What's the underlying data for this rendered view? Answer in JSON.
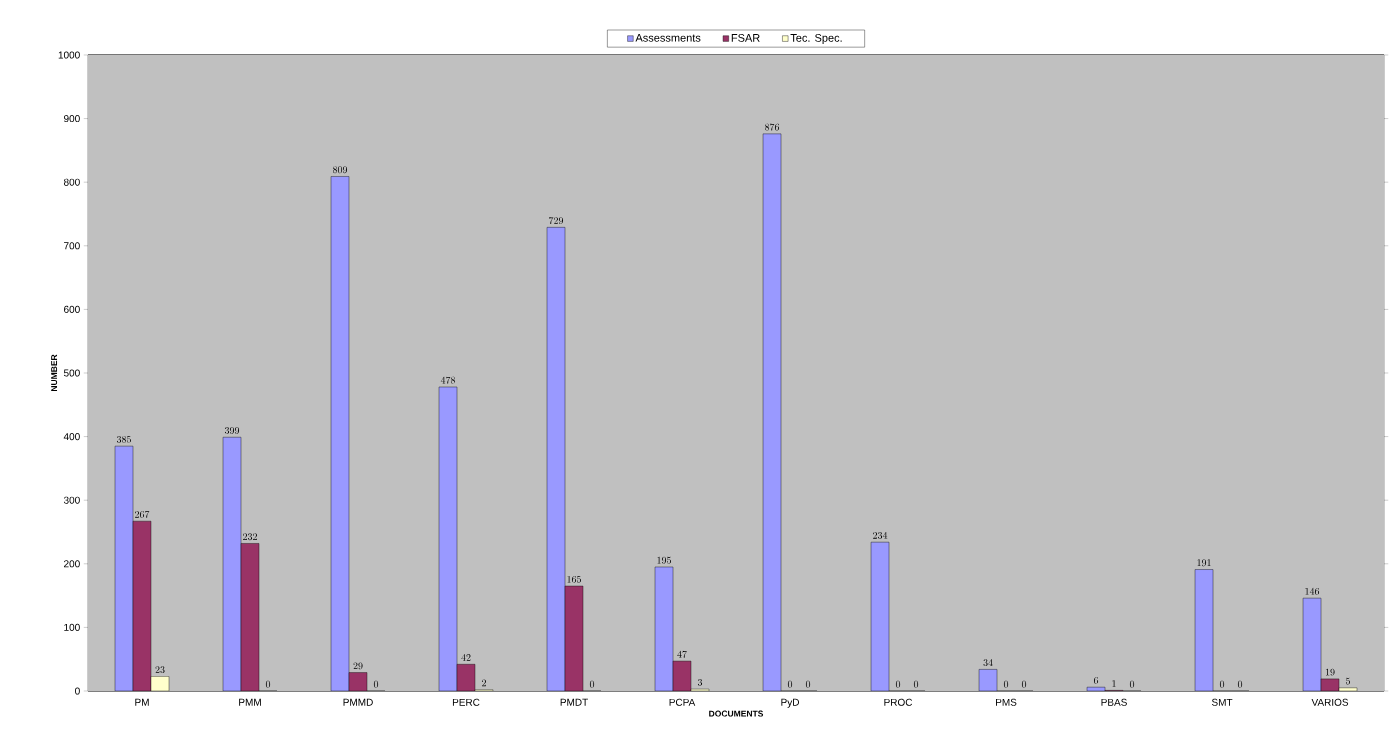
{
  "chart_data": {
    "type": "bar",
    "xlabel": "DOCUMENTS",
    "ylabel": "NUMBER",
    "categories": [
      "PM",
      "PMM",
      "PMMD",
      "PERC",
      "PMDT",
      "PCPA",
      "PyD",
      "PROC",
      "PMS",
      "PBAS",
      "SMT",
      "VARIOS"
    ],
    "series": [
      {
        "name": "Assessments",
        "color": "#9999ff",
        "values": [
          385,
          399,
          809,
          478,
          729,
          195,
          876,
          234,
          34,
          6,
          191,
          146
        ]
      },
      {
        "name": "FSAR",
        "color": "#993366",
        "values": [
          267,
          232,
          29,
          42,
          165,
          47,
          0,
          0,
          0,
          1,
          0,
          19
        ]
      },
      {
        "name": "Tec. Spec.",
        "color": "#ffffcc",
        "values": [
          23,
          0,
          0,
          2,
          0,
          3,
          0,
          0,
          0,
          0,
          0,
          5
        ]
      }
    ],
    "ylim": [
      0,
      1000
    ],
    "yticks": [
      0,
      100,
      200,
      300,
      400,
      500,
      600,
      700,
      800,
      900,
      1000
    ],
    "grid": "y",
    "legend": "top",
    "data_labels": true
  }
}
